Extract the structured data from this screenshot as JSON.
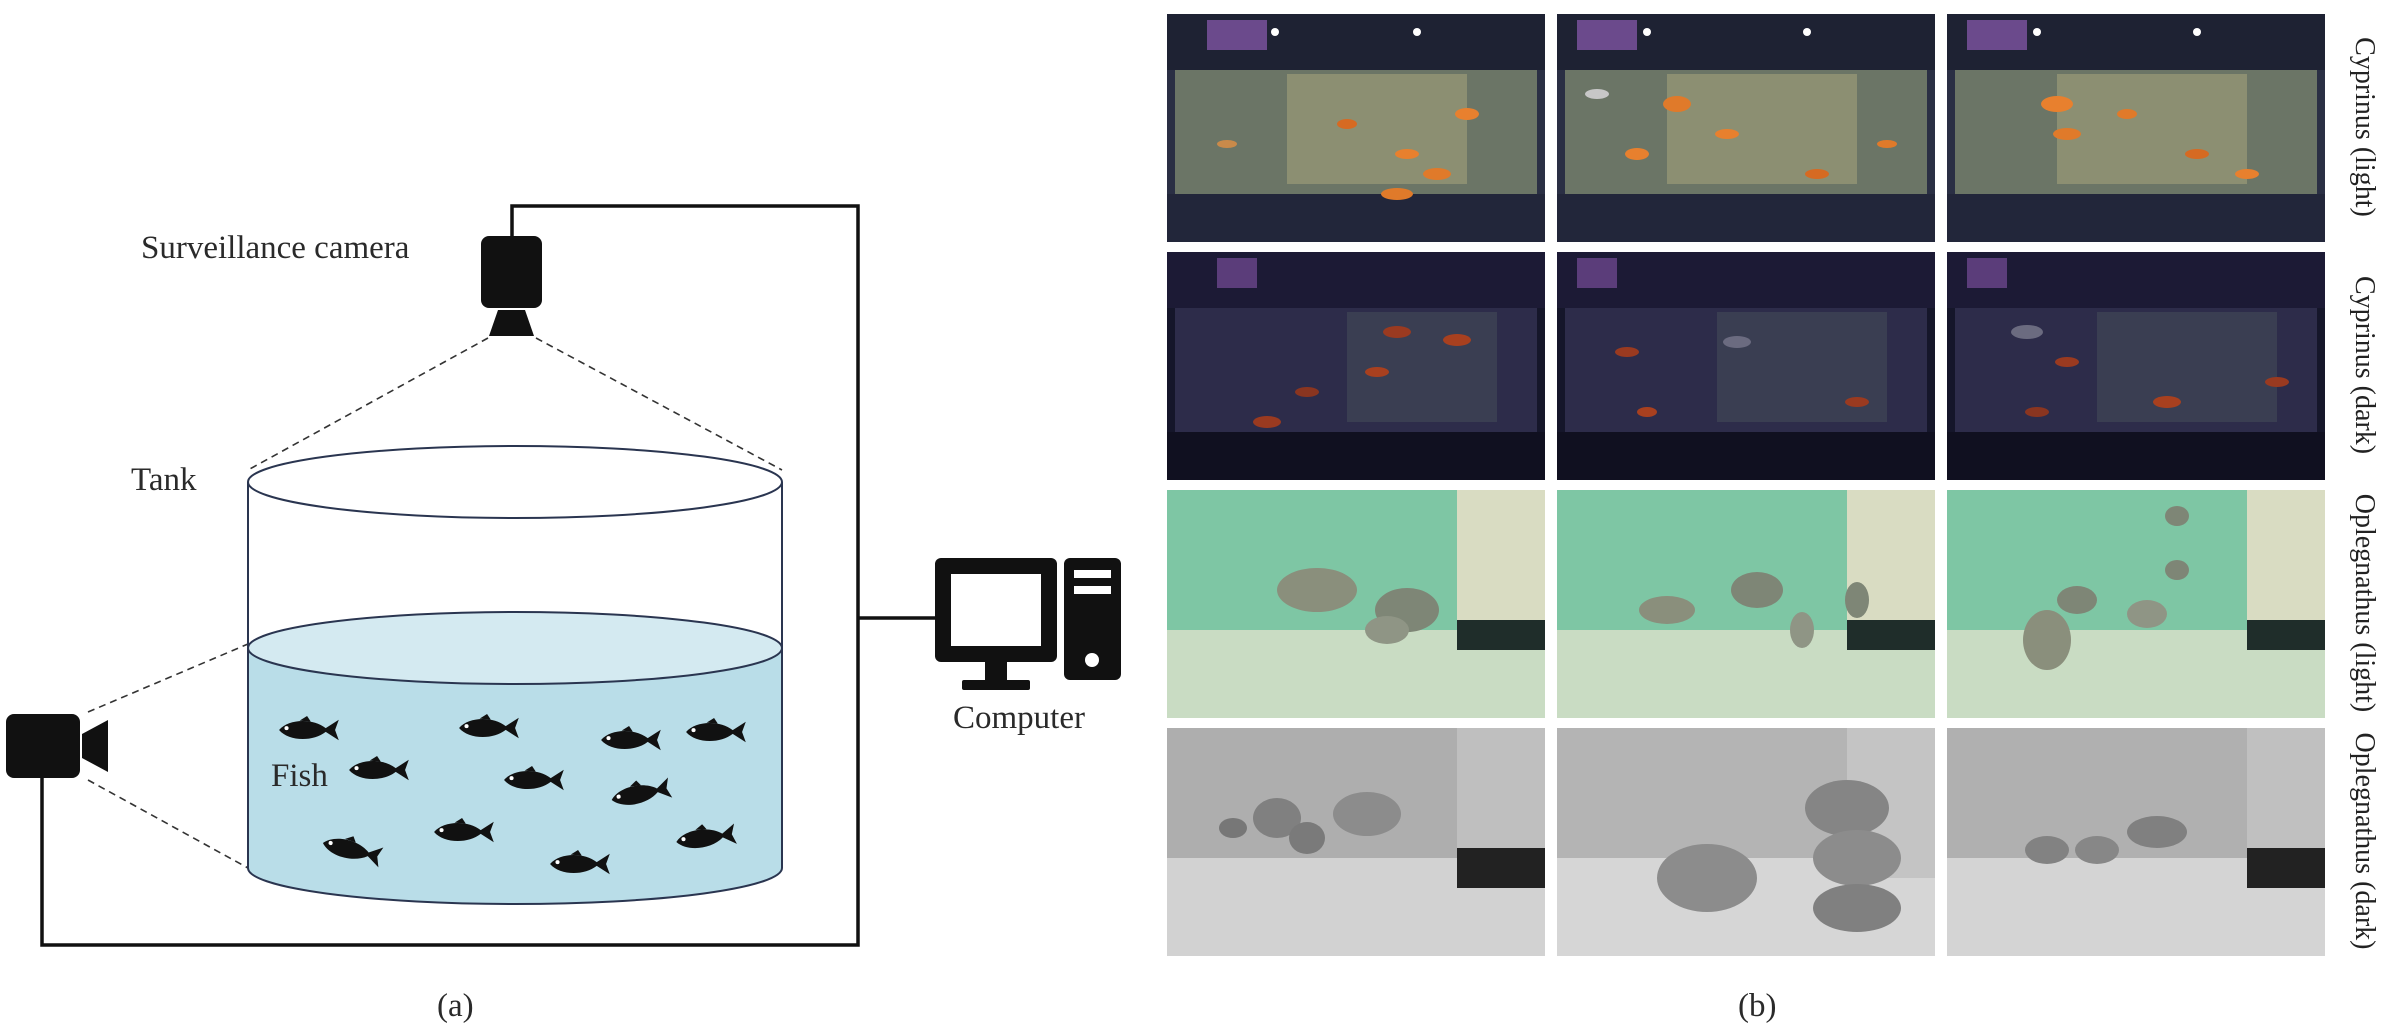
{
  "panel_a": {
    "camera_label": "Surveillance camera",
    "tank_label": "Tank",
    "fish_label": "Fish",
    "computer_label": "Computer",
    "caption": "(a)",
    "colors": {
      "water": "#b9dde8",
      "water_top": "#d4eaf1",
      "line": "#111111",
      "icon": "#111111"
    },
    "icons": [
      "top-camera-icon",
      "side-camera-icon",
      "computer-icon",
      "fish-icon"
    ]
  },
  "panel_b": {
    "caption": "(b)",
    "rows": [
      {
        "label": "Cyprinus (light)",
        "scene": "aquarium-light",
        "images": [
          "cyprinus-light-1",
          "cyprinus-light-2",
          "cyprinus-light-3"
        ]
      },
      {
        "label": "Cyprinus (dark)",
        "scene": "aquarium-dark",
        "images": [
          "cyprinus-dark-1",
          "cyprinus-dark-2",
          "cyprinus-dark-3"
        ]
      },
      {
        "label": "Oplegnathus (light)",
        "scene": "pool-green",
        "images": [
          "oplegnathus-light-1",
          "oplegnathus-light-2",
          "oplegnathus-light-3"
        ]
      },
      {
        "label": "Oplegnathus (dark)",
        "scene": "pool-gray",
        "images": [
          "oplegnathus-dark-1",
          "oplegnathus-dark-2",
          "oplegnathus-dark-3"
        ]
      }
    ]
  }
}
